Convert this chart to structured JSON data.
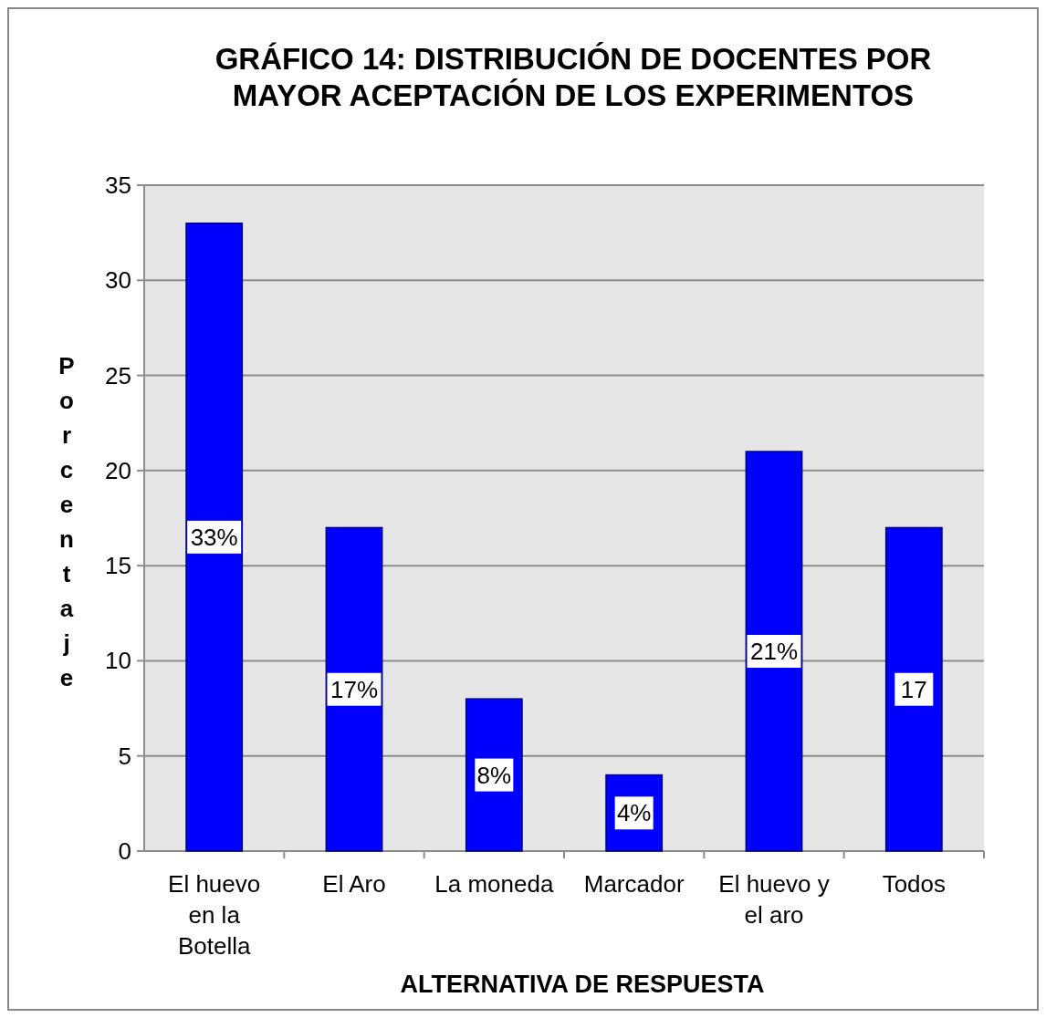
{
  "chart_data": {
    "type": "bar",
    "title": "GRÁFICO 14: DISTRIBUCIÓN DE DOCENTES POR MAYOR ACEPTACIÓN DE LOS EXPERIMENTOS",
    "xlabel": "ALTERNATIVA DE RESPUESTA",
    "ylabel": "Porcentaje",
    "categories": [
      "El huevo en la Botella",
      "El Aro",
      "La moneda",
      "Marcador",
      "El huevo y el aro",
      "Todos"
    ],
    "values": [
      33,
      17,
      8,
      4,
      21,
      17
    ],
    "value_labels": [
      "33%",
      "17%",
      "8%",
      "4%",
      "21%",
      "17"
    ],
    "color": "#0000ff",
    "ylim": [
      0,
      35
    ],
    "yticks": [
      0,
      5,
      10,
      15,
      20,
      25,
      30,
      35
    ],
    "grid": "y"
  }
}
